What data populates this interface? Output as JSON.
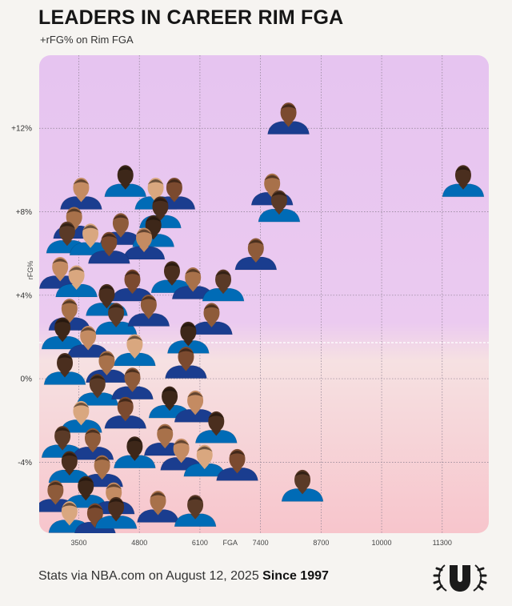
{
  "header": {
    "title": "LEADERS IN CAREER RIM  FGA",
    "subtitle": "+rFG% on Rim FGA"
  },
  "footer": {
    "source_text": "Stats via NBA.com on August 12, 2025",
    "since_text": "Since 1997"
  },
  "colors": {
    "upper_bg_top": "#e7c7f0",
    "lower_bg_bottom": "#f7c6cc",
    "gridline": "#8a7f8f"
  },
  "chart_data": {
    "type": "scatter",
    "title": "LEADERS IN CAREER RIM  FGA",
    "subtitle": "+rFG% on Rim FGA",
    "xlabel": "FGA",
    "ylabel": "rFG%",
    "x_ticks": [
      3500,
      4800,
      6100,
      7400,
      8700,
      10000,
      11300
    ],
    "x_tick_labels": [
      "3500",
      "4800",
      "6100",
      "7400",
      "8700",
      "10000",
      "11300"
    ],
    "y_ticks": [
      12,
      8,
      4,
      0,
      -4
    ],
    "y_tick_labels": [
      "+12%",
      "+8%",
      "+4%",
      "0%",
      "-4%"
    ],
    "xlim": [
      2650,
      12300
    ],
    "ylim": [
      -7.4,
      15.5
    ],
    "grid": true,
    "legend": "none",
    "points": [
      {
        "x": 8000,
        "y": 12.6
      },
      {
        "x": 11750,
        "y": 9.6
      },
      {
        "x": 7650,
        "y": 9.2
      },
      {
        "x": 7800,
        "y": 8.4
      },
      {
        "x": 7300,
        "y": 6.1
      },
      {
        "x": 4500,
        "y": 9.6
      },
      {
        "x": 3550,
        "y": 9.0
      },
      {
        "x": 5150,
        "y": 9.0
      },
      {
        "x": 5550,
        "y": 9.0
      },
      {
        "x": 5250,
        "y": 8.1
      },
      {
        "x": 3400,
        "y": 7.6
      },
      {
        "x": 3250,
        "y": 6.9
      },
      {
        "x": 4400,
        "y": 7.3
      },
      {
        "x": 5100,
        "y": 7.2
      },
      {
        "x": 4900,
        "y": 6.6
      },
      {
        "x": 3750,
        "y": 6.8
      },
      {
        "x": 4150,
        "y": 6.4
      },
      {
        "x": 5500,
        "y": 5.0
      },
      {
        "x": 5950,
        "y": 4.7
      },
      {
        "x": 6600,
        "y": 4.6
      },
      {
        "x": 6350,
        "y": 3.0
      },
      {
        "x": 5850,
        "y": 2.1
      },
      {
        "x": 3100,
        "y": 5.2
      },
      {
        "x": 3450,
        "y": 4.8
      },
      {
        "x": 4650,
        "y": 4.6
      },
      {
        "x": 4100,
        "y": 3.9
      },
      {
        "x": 3300,
        "y": 3.2
      },
      {
        "x": 4300,
        "y": 3.0
      },
      {
        "x": 5000,
        "y": 3.4
      },
      {
        "x": 3150,
        "y": 2.3
      },
      {
        "x": 3700,
        "y": 1.9
      },
      {
        "x": 4700,
        "y": 1.5
      },
      {
        "x": 5800,
        "y": 0.9
      },
      {
        "x": 3200,
        "y": 0.6
      },
      {
        "x": 4100,
        "y": 0.7
      },
      {
        "x": 3900,
        "y": -0.4
      },
      {
        "x": 4650,
        "y": -0.1
      },
      {
        "x": 5450,
        "y": -1.0
      },
      {
        "x": 6000,
        "y": -1.2
      },
      {
        "x": 3550,
        "y": -1.7
      },
      {
        "x": 4500,
        "y": -1.5
      },
      {
        "x": 6450,
        "y": -2.2
      },
      {
        "x": 5350,
        "y": -2.8
      },
      {
        "x": 3150,
        "y": -2.9
      },
      {
        "x": 3800,
        "y": -3.0
      },
      {
        "x": 4700,
        "y": -3.4
      },
      {
        "x": 5700,
        "y": -3.5
      },
      {
        "x": 6200,
        "y": -3.8
      },
      {
        "x": 6900,
        "y": -4.0
      },
      {
        "x": 3300,
        "y": -4.1
      },
      {
        "x": 4000,
        "y": -4.3
      },
      {
        "x": 8300,
        "y": -5.0
      },
      {
        "x": 3000,
        "y": -5.5
      },
      {
        "x": 3650,
        "y": -5.3
      },
      {
        "x": 4250,
        "y": -5.6
      },
      {
        "x": 3300,
        "y": -6.5
      },
      {
        "x": 3850,
        "y": -6.6
      },
      {
        "x": 4300,
        "y": -6.3
      },
      {
        "x": 5200,
        "y": -6.0
      },
      {
        "x": 6000,
        "y": -6.2
      }
    ]
  }
}
